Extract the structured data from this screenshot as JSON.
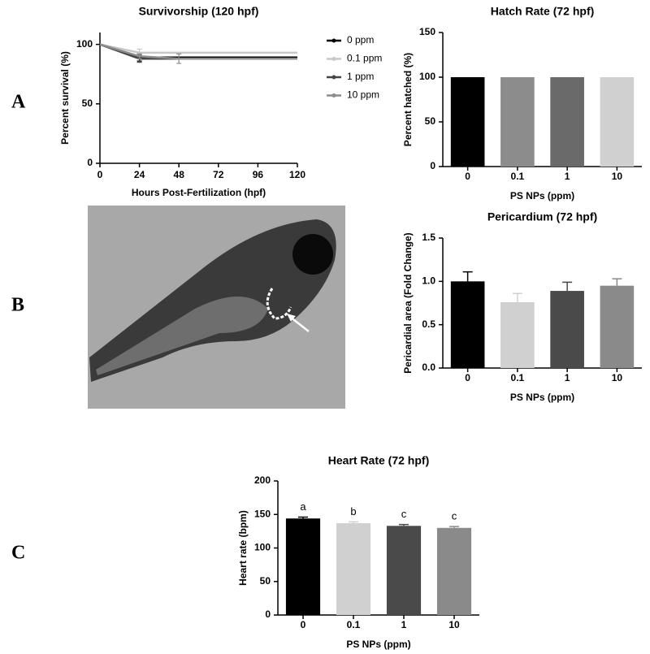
{
  "panels": [
    "A",
    "B",
    "C"
  ],
  "chart_data": [
    {
      "type": "line",
      "title": "Survivorship (120 hpf)",
      "x_label": "Hours Post-Fertilization (hpf)",
      "y_label": "Percent survival (%)",
      "x": [
        0,
        24,
        48,
        72,
        96,
        120
      ],
      "xlim": [
        0,
        120
      ],
      "xticks": [
        0,
        24,
        48,
        72,
        96,
        120
      ],
      "ylim": [
        0,
        110
      ],
      "yticks": [
        0,
        50,
        100
      ],
      "series": [
        {
          "name": "0 ppm",
          "color": "#000000",
          "values": [
            100,
            89,
            89,
            89,
            89,
            89
          ],
          "errors": [
            null,
            3,
            null,
            null,
            null,
            null
          ]
        },
        {
          "name": "0.1 ppm",
          "color": "#c8c8c8",
          "values": [
            100,
            93,
            93,
            93,
            93,
            93
          ],
          "errors": [
            null,
            3,
            null,
            null,
            null,
            null
          ]
        },
        {
          "name": "1 ppm",
          "color": "#444444",
          "values": [
            100,
            88,
            88,
            88,
            88,
            88
          ],
          "errors": [
            null,
            3,
            null,
            null,
            null,
            null
          ]
        },
        {
          "name": "10 ppm",
          "color": "#8c8c8c",
          "values": [
            100,
            90,
            88,
            88,
            88,
            88
          ],
          "errors": [
            null,
            2,
            4,
            null,
            null,
            null
          ]
        }
      ]
    },
    {
      "type": "bar",
      "title": "Hatch Rate (72 hpf)",
      "x_label": "PS NPs (ppm)",
      "y_label": "Percent hatched (%)",
      "categories": [
        "0",
        "0.1",
        "1",
        "10"
      ],
      "values": [
        100,
        100,
        100,
        100
      ],
      "colors": [
        "#000000",
        "#8c8c8c",
        "#6a6a6a",
        "#d0d0d0"
      ],
      "ylim": [
        0,
        150
      ],
      "yticks": [
        0,
        50,
        100,
        150
      ]
    },
    {
      "type": "bar",
      "title": "Pericardium (72 hpf)",
      "x_label": "PS NPs (ppm)",
      "y_label": "Pericardial area (Fold  Change)",
      "categories": [
        "0",
        "0.1",
        "1",
        "10"
      ],
      "values": [
        1.0,
        0.76,
        0.89,
        0.95
      ],
      "errors": [
        0.11,
        0.1,
        0.1,
        0.08
      ],
      "colors": [
        "#000000",
        "#d0d0d0",
        "#4a4a4a",
        "#8a8a8a"
      ],
      "ylim": [
        0,
        1.5
      ],
      "yticks": [
        {
          "value": 0,
          "label": "0.0"
        },
        {
          "value": 0.5,
          "label": "0.5"
        },
        {
          "value": 1,
          "label": "1.0"
        },
        {
          "value": 1.5,
          "label": "1.5"
        }
      ]
    },
    {
      "type": "bar",
      "title": "Heart Rate (72 hpf)",
      "x_label": "PS NPs (ppm)",
      "y_label": "Heart rate (bpm)",
      "categories": [
        "0",
        "0.1",
        "1",
        "10"
      ],
      "values": [
        144,
        137,
        133,
        130
      ],
      "errors": [
        2,
        2,
        2,
        2
      ],
      "annotations": [
        "a",
        "b",
        "c",
        "c"
      ],
      "colors": [
        "#000000",
        "#d0d0d0",
        "#4a4a4a",
        "#8a8a8a"
      ],
      "ylim": [
        0,
        200
      ],
      "yticks": [
        0,
        50,
        100,
        150,
        200
      ]
    }
  ]
}
